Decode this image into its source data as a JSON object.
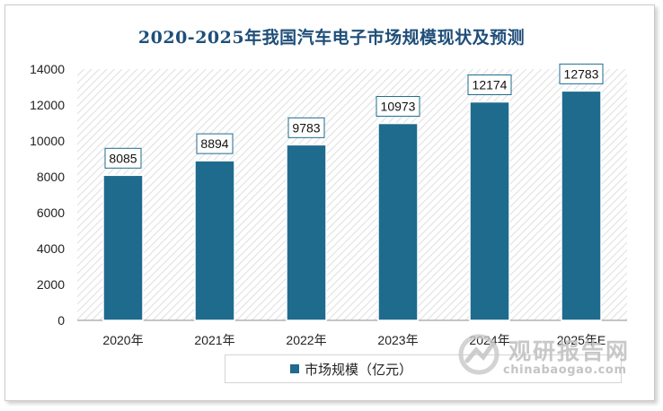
{
  "title": "2020-2025年我国汽车电子市场规模现状及预测",
  "colors": {
    "bar": "#1f6b8e",
    "title": "#1f4e79",
    "hatch": "#e3e3e3"
  },
  "chart_data": {
    "type": "bar",
    "title": "2020-2025年我国汽车电子市场规模现状及预测",
    "categories": [
      "2020年",
      "2021年",
      "2022年",
      "2023年",
      "2024年",
      "2025年E"
    ],
    "series": [
      {
        "name": "市场规模（亿元）",
        "values": [
          8085,
          8894,
          9783,
          10973,
          12174,
          12783
        ]
      }
    ],
    "ylim": [
      0,
      14000
    ],
    "yticks": [
      0,
      2000,
      4000,
      6000,
      8000,
      10000,
      12000,
      14000
    ],
    "xlabel": "",
    "ylabel": "",
    "grid": false,
    "legend": "bottom",
    "data_labels": true
  },
  "watermark": {
    "name": "观研报告网",
    "url": "chinabaogao.com"
  }
}
